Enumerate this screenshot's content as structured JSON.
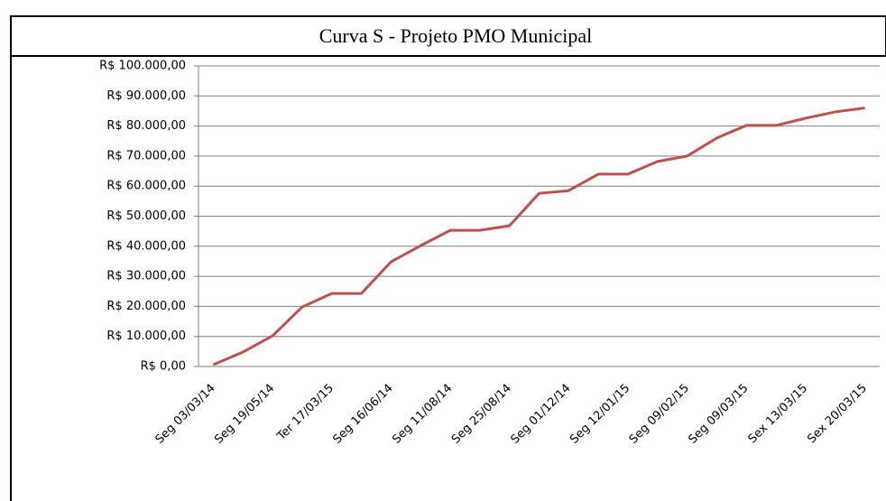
{
  "chart_data": {
    "type": "line",
    "title": "Curva S - Projeto PMO Municipal",
    "categories": [
      "Seg 03/03/14",
      null,
      "Seg 19/05/14",
      null,
      "Ter 17/03/15",
      null,
      "Seg 16/06/14",
      null,
      "Seg 11/08/14",
      null,
      "Seg 25/08/14",
      null,
      "Seg 01/12/14",
      null,
      "Seg 12/01/15",
      null,
      "Seg 09/02/15",
      null,
      "Seg 09/03/15",
      null,
      "Sex 13/03/15",
      null,
      "Sex 20/03/15"
    ],
    "series": [
      {
        "name": "Curva S",
        "color": "#c0504d",
        "values": [
          600,
          4800,
          10200,
          19800,
          24300,
          24300,
          34800,
          40200,
          45300,
          45300,
          46800,
          57600,
          58500,
          64000,
          64000,
          68200,
          70000,
          76000,
          80200,
          80200,
          82600,
          84700,
          86000
        ]
      }
    ],
    "ylim": [
      0,
      100000
    ],
    "yticks": [
      {
        "value": 0,
        "label": "R$ 0,00"
      },
      {
        "value": 10000,
        "label": "R$ 10.000,00"
      },
      {
        "value": 20000,
        "label": "R$ 20.000,00"
      },
      {
        "value": 30000,
        "label": "R$ 30.000,00"
      },
      {
        "value": 40000,
        "label": "R$ 40.000,00"
      },
      {
        "value": 50000,
        "label": "R$ 50.000,00"
      },
      {
        "value": 60000,
        "label": "R$ 60.000,00"
      },
      {
        "value": 70000,
        "label": "R$ 70.000,00"
      },
      {
        "value": 80000,
        "label": "R$ 80.000,00"
      },
      {
        "value": 90000,
        "label": "R$ 90.000,00"
      },
      {
        "value": 100000,
        "label": "R$ 100.000,00"
      }
    ],
    "grid": true
  }
}
